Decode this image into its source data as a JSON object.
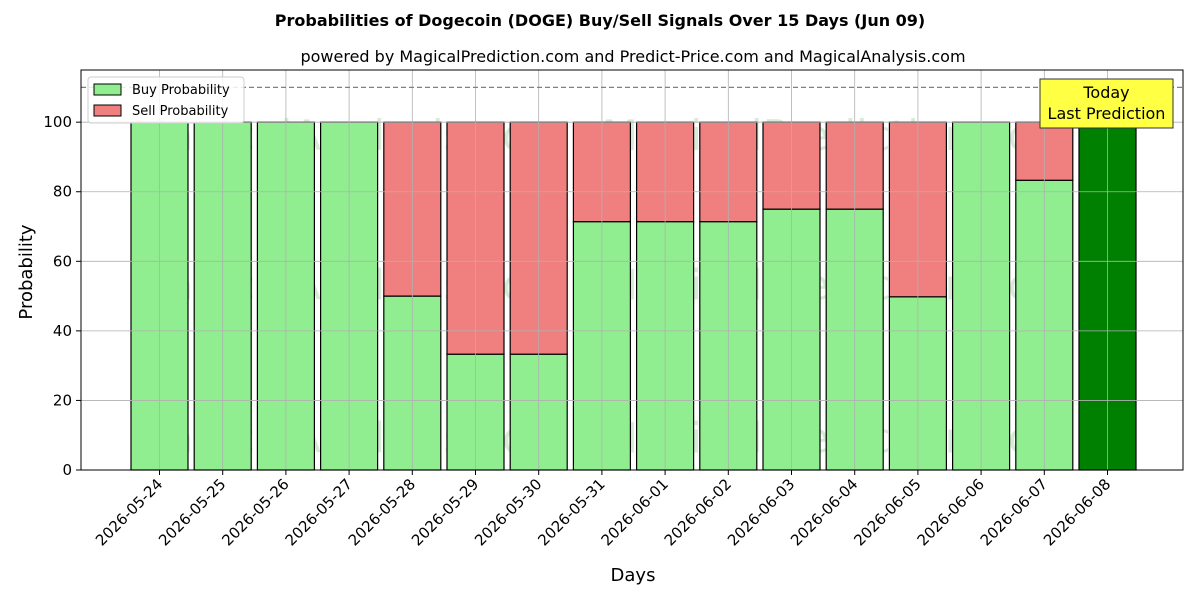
{
  "chart_data": {
    "type": "bar",
    "stacked": true,
    "title": "Probabilities of Dogecoin (DOGE) Buy/Sell Signals Over 15 Days (Jun 09)",
    "subtitle": "powered by MagicalPrediction.com and Predict-Price.com and MagicalAnalysis.com",
    "xlabel": "Days",
    "ylabel": "Probability",
    "ylim": [
      0,
      115
    ],
    "yticks": [
      0,
      20,
      40,
      60,
      80,
      100
    ],
    "grid": true,
    "legend_position": "top-left",
    "reference_line": 110,
    "categories": [
      "2026-05-24",
      "2026-05-25",
      "2026-05-26",
      "2026-05-27",
      "2026-05-28",
      "2026-05-29",
      "2026-05-30",
      "2026-05-31",
      "2026-06-01",
      "2026-06-02",
      "2026-06-03",
      "2026-06-04",
      "2026-06-05",
      "2026-06-06",
      "2026-06-07",
      "2026-06-08"
    ],
    "series": [
      {
        "name": "Buy Probability",
        "color": "#90ee90",
        "values": [
          100,
          100,
          100,
          100,
          50,
          33.3,
          33.3,
          71.4,
          71.4,
          71.4,
          75,
          75,
          49.8,
          100,
          83.3,
          100
        ]
      },
      {
        "name": "Sell Probability",
        "color": "#f08080",
        "values": [
          0,
          0,
          0,
          0,
          50,
          66.7,
          66.7,
          28.6,
          28.6,
          28.6,
          25,
          25,
          50.2,
          0,
          16.7,
          0
        ]
      }
    ],
    "highlight": {
      "index": 15,
      "color": "#008000",
      "label_lines": [
        "Today",
        "Last Prediction"
      ],
      "box_color": "#ffff44"
    },
    "watermarks": [
      "MagicalAnalysis.com",
      "MagicalPrediction.com"
    ]
  }
}
